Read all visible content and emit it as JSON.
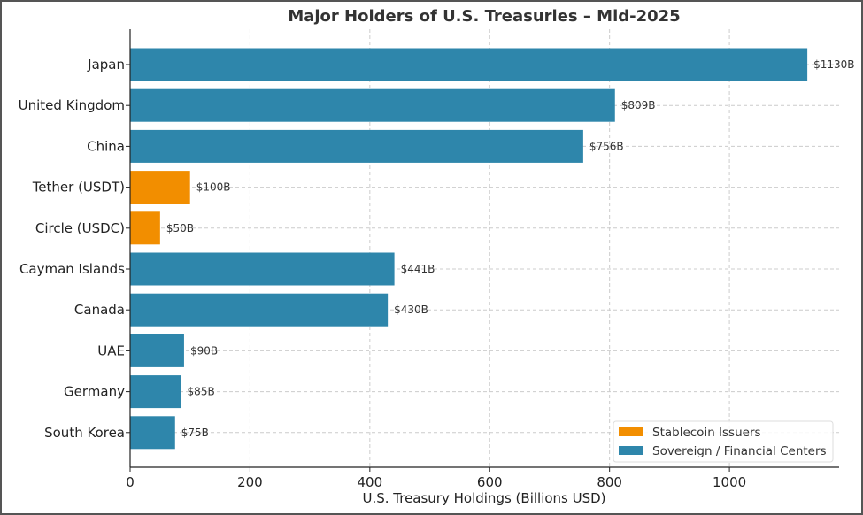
{
  "chart_data": {
    "type": "bar",
    "orientation": "horizontal",
    "title": "Major Holders of U.S. Treasuries – Mid-2025",
    "xlabel": "U.S. Treasury Holdings (Billions USD)",
    "ylabel": "",
    "xlim": [
      0,
      1183
    ],
    "xticks": [
      0,
      200,
      400,
      600,
      800,
      1000
    ],
    "grid": true,
    "legend_position": "bottom-right",
    "categories": [
      "Japan",
      "United Kingdom",
      "China",
      "Tether (USDT)",
      "Circle (USDC)",
      "Cayman Islands",
      "Canada",
      "UAE",
      "Germany",
      "South Korea"
    ],
    "values": [
      1130,
      809,
      756,
      100,
      50,
      441,
      430,
      90,
      85,
      75
    ],
    "data_labels": [
      "$1130B",
      "$809B",
      "$756B",
      "$100B",
      "$50B",
      "$441B",
      "$430B",
      "$90B",
      "$85B",
      "$75B"
    ],
    "groups": [
      "sovereign",
      "sovereign",
      "sovereign",
      "stablecoin",
      "stablecoin",
      "sovereign",
      "sovereign",
      "sovereign",
      "sovereign",
      "sovereign"
    ],
    "legend": [
      {
        "key": "stablecoin",
        "name": "Stablecoin Issuers",
        "color": "#f28e00"
      },
      {
        "key": "sovereign",
        "name": "Sovereign / Financial Centers",
        "color": "#2e86ab"
      }
    ]
  }
}
